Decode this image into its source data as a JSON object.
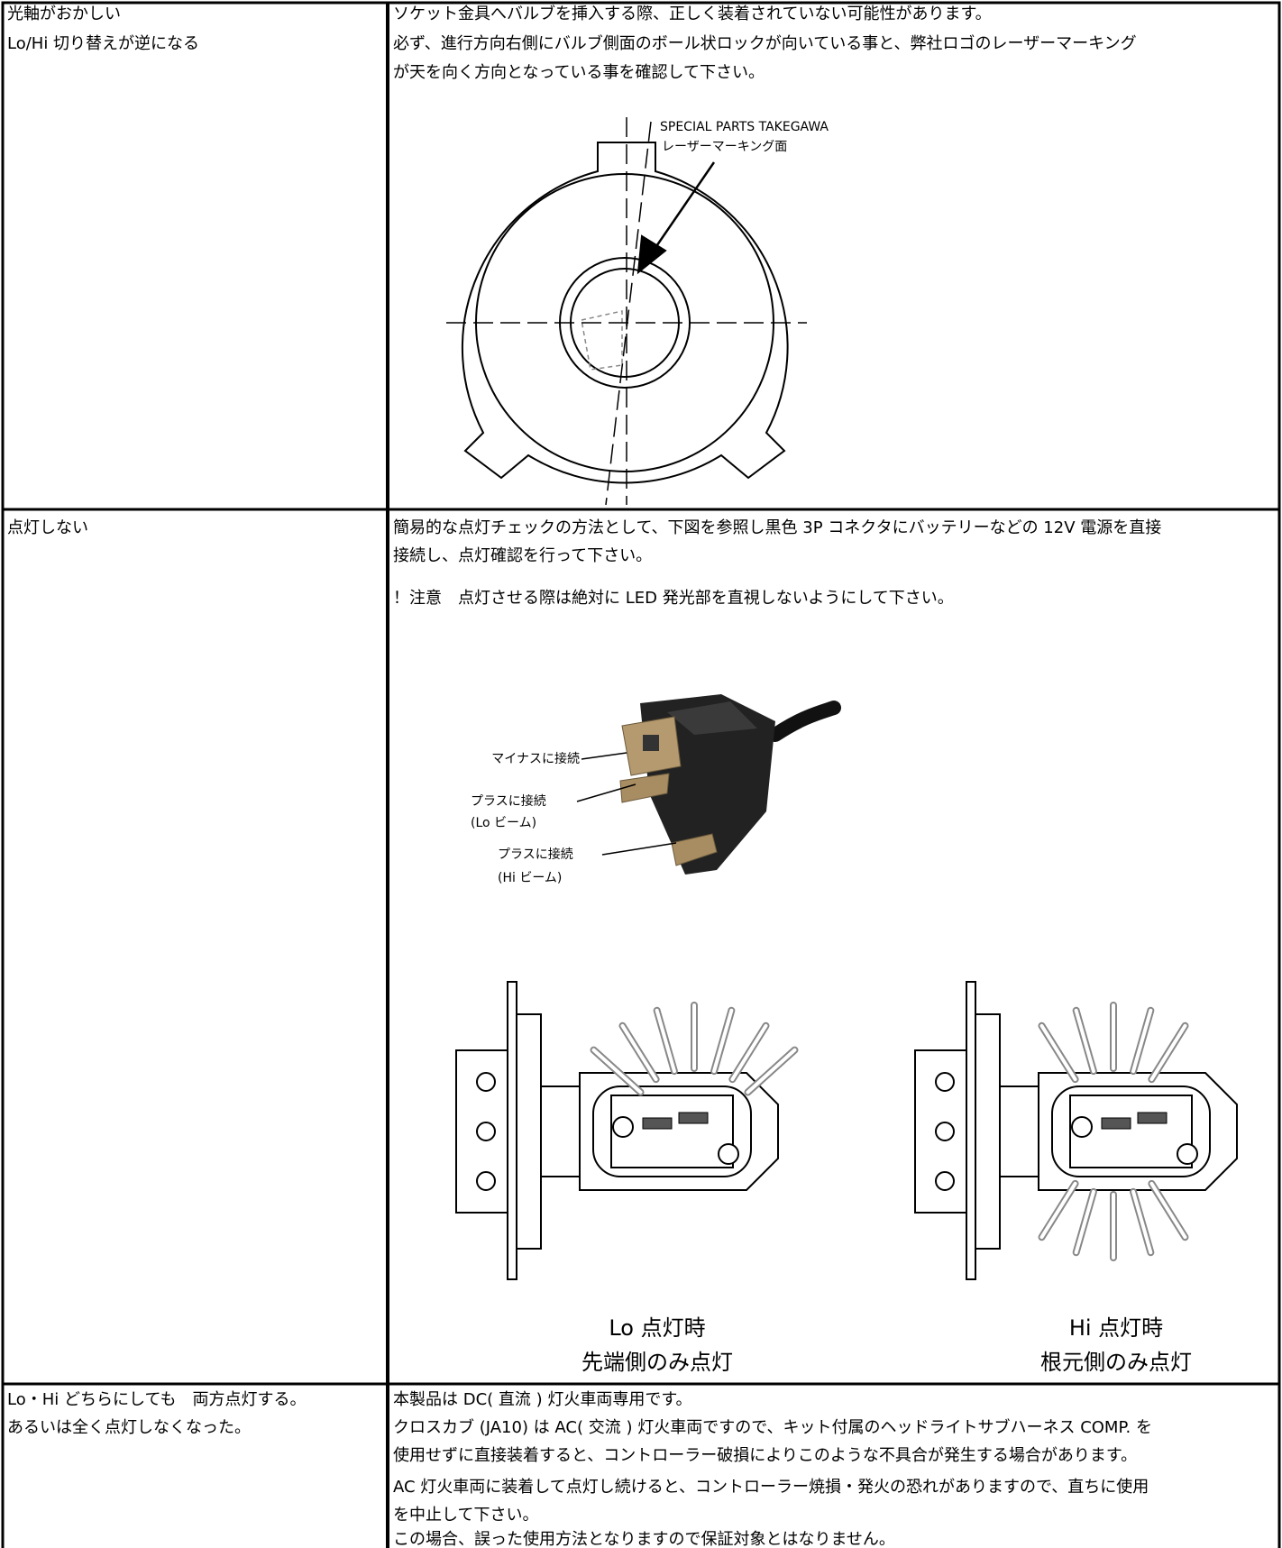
{
  "table": {
    "rows": [
      {
        "problem": [
          "光軸がおかしい",
          "Lo/Hi 切り替えが逆になる"
        ],
        "remedy": [
          "ソケット金具へバルブを挿入する際、正しく装着されていない可能性があります。",
          "必ず、進行方向右側にバルブ側面のボール状ロックが向いている事と、弊社ロゴのレーザーマーキング",
          "が天を向く方向となっている事を確認して下さい。"
        ],
        "figure": {
          "labels": [
            "SPECIAL PARTS TAKEGAWA",
            "レーザーマーキング面"
          ]
        }
      },
      {
        "problem": [
          "点灯しない"
        ],
        "remedy": [
          "簡易的な点灯チェックの方法として、下図を参照し黒色 3P コネクタにバッテリーなどの 12V 電源を直接",
          "接続し、点灯確認を行って下さい。",
          "！注意　点灯させる際は絶対に LED 発光部を直視しないようにして下さい。"
        ],
        "figure": {
          "callouts": [
            [
              "マイナスに接続"
            ],
            [
              "プラスに接続",
              "(Lo ビーム)"
            ],
            [
              "プラスに接続",
              "(Hi ビーム)"
            ]
          ],
          "bulbs": [
            {
              "title": "Lo 点灯時",
              "caption": "先端側のみ点灯"
            },
            {
              "title": "Hi 点灯時",
              "caption": "根元側のみ点灯"
            }
          ]
        }
      },
      {
        "problem": [
          "Lo・Hi どちらにしても　両方点灯する。",
          "あるいは全く点灯しなくなった。"
        ],
        "remedy": [
          "本製品は DC( 直流 ) 灯火車両専用です。",
          "クロスカブ (JA10) は AC( 交流 ) 灯火車両ですので、キット付属のヘッドライトサブハーネス COMP. を",
          "使用せずに直接装着すると、コントローラー破損によりこのような不具合が発生する場合があります。",
          "AC 灯火車両に装着して点灯し続けると、コントローラー焼損・発火の恐れがありますので、直ちに使用",
          "を中止して下さい。",
          "この場合、誤った使用方法となりますので保証対象とはなりません。"
        ]
      }
    ]
  }
}
